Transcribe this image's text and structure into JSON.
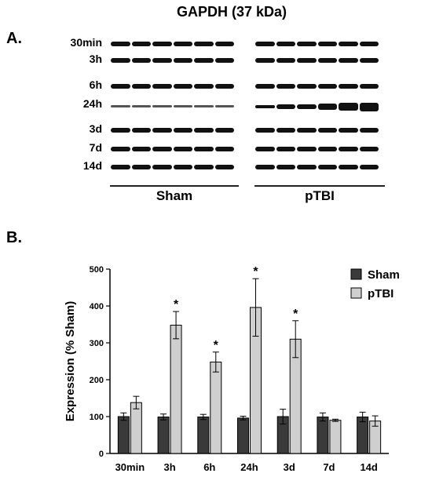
{
  "blot": {
    "title": "GAPDH (37 kDa)",
    "panel_label": "A.",
    "rows": [
      "30min",
      "3h",
      "6h",
      "24h",
      "3d",
      "7d",
      "14d"
    ],
    "groups": [
      "Sham",
      "pTBI"
    ]
  },
  "chart_panel_label": "B.",
  "chart_data": {
    "type": "bar",
    "categories": [
      "30min",
      "3h",
      "6h",
      "24h",
      "3d",
      "7d",
      "14d"
    ],
    "series": [
      {
        "name": "Sham",
        "color": "#3a3a3a",
        "values": [
          100,
          99,
          99,
          96,
          100,
          99,
          99
        ],
        "errors": [
          10,
          8,
          7,
          5,
          20,
          11,
          13
        ]
      },
      {
        "name": "pTBI",
        "color": "#cfcfcf",
        "values": [
          138,
          348,
          248,
          396,
          310,
          90,
          88
        ],
        "errors": [
          17,
          37,
          27,
          78,
          50,
          3,
          14
        ]
      }
    ],
    "significance": [
      "",
      "*",
      "*",
      "*",
      "*",
      "",
      ""
    ],
    "significance_marker": "*",
    "ylabel": "Expression (% Sham)",
    "xlabel": "",
    "ylim": [
      0,
      500
    ],
    "yticks": [
      0,
      100,
      200,
      300,
      400,
      500
    ],
    "legend_position": "top-right",
    "grid": false
  }
}
